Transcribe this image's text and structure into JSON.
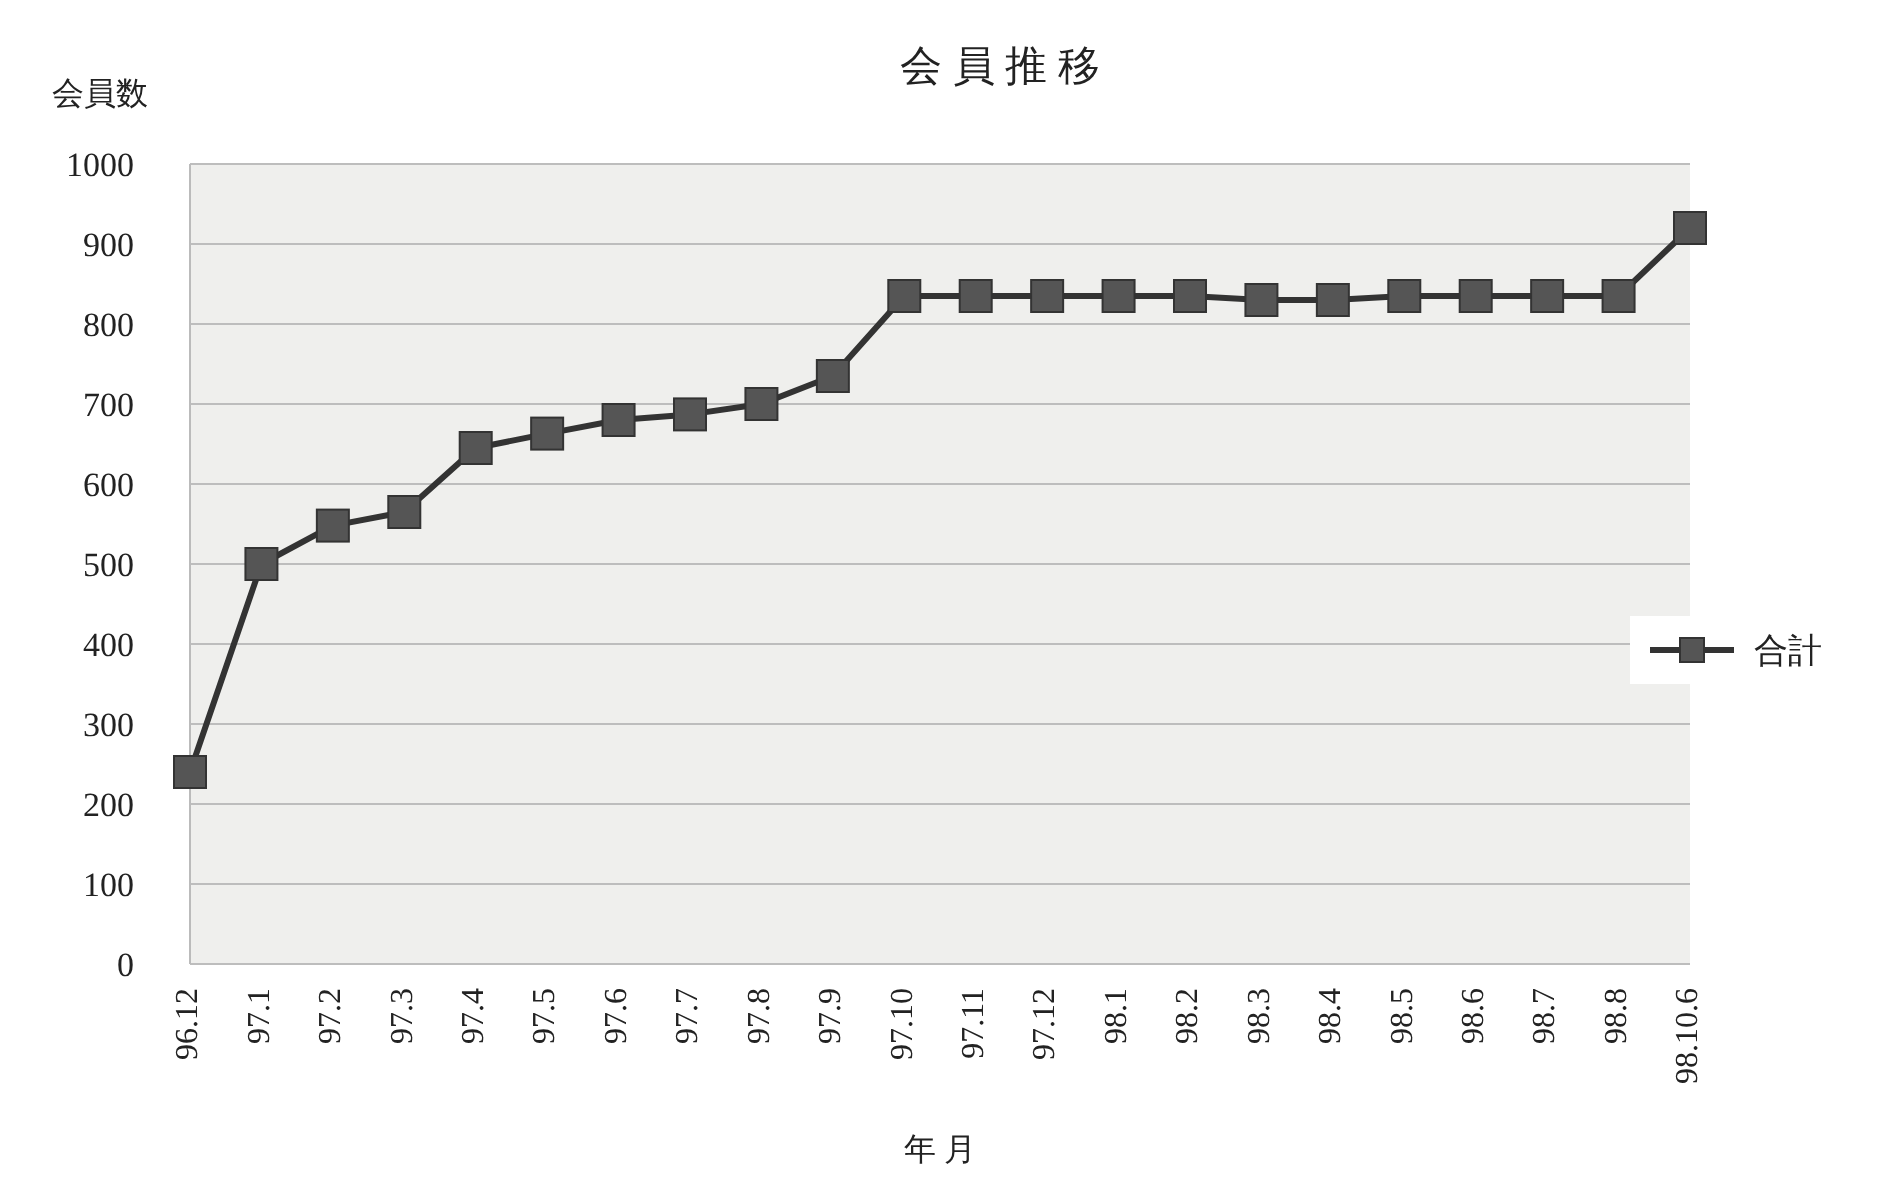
{
  "chart_data": {
    "type": "line",
    "title": "会 員 推 移",
    "ylabel": "会員数",
    "xlabel": "年 月",
    "categories": [
      "96.12",
      "97.1",
      "97.2",
      "97.3",
      "97.4",
      "97.5",
      "97.6",
      "97.7",
      "97.8",
      "97.9",
      "97.10",
      "97.11",
      "97.12",
      "98.1",
      "98.2",
      "98.3",
      "98.4",
      "98.5",
      "98.6",
      "98.7",
      "98.8",
      "98.10.6"
    ],
    "series": [
      {
        "name": "合計",
        "color": "#333333",
        "values": [
          240,
          500,
          548,
          565,
          645,
          663,
          680,
          687,
          700,
          735,
          835,
          835,
          835,
          835,
          835,
          830,
          830,
          835,
          835,
          835,
          835,
          920
        ]
      }
    ],
    "ylim": [
      0,
      1000
    ],
    "yticks": [
      0,
      100,
      200,
      300,
      400,
      500,
      600,
      700,
      800,
      900,
      1000
    ],
    "grid": "y",
    "legend": "right",
    "marker": "square",
    "line_style": "solid"
  }
}
